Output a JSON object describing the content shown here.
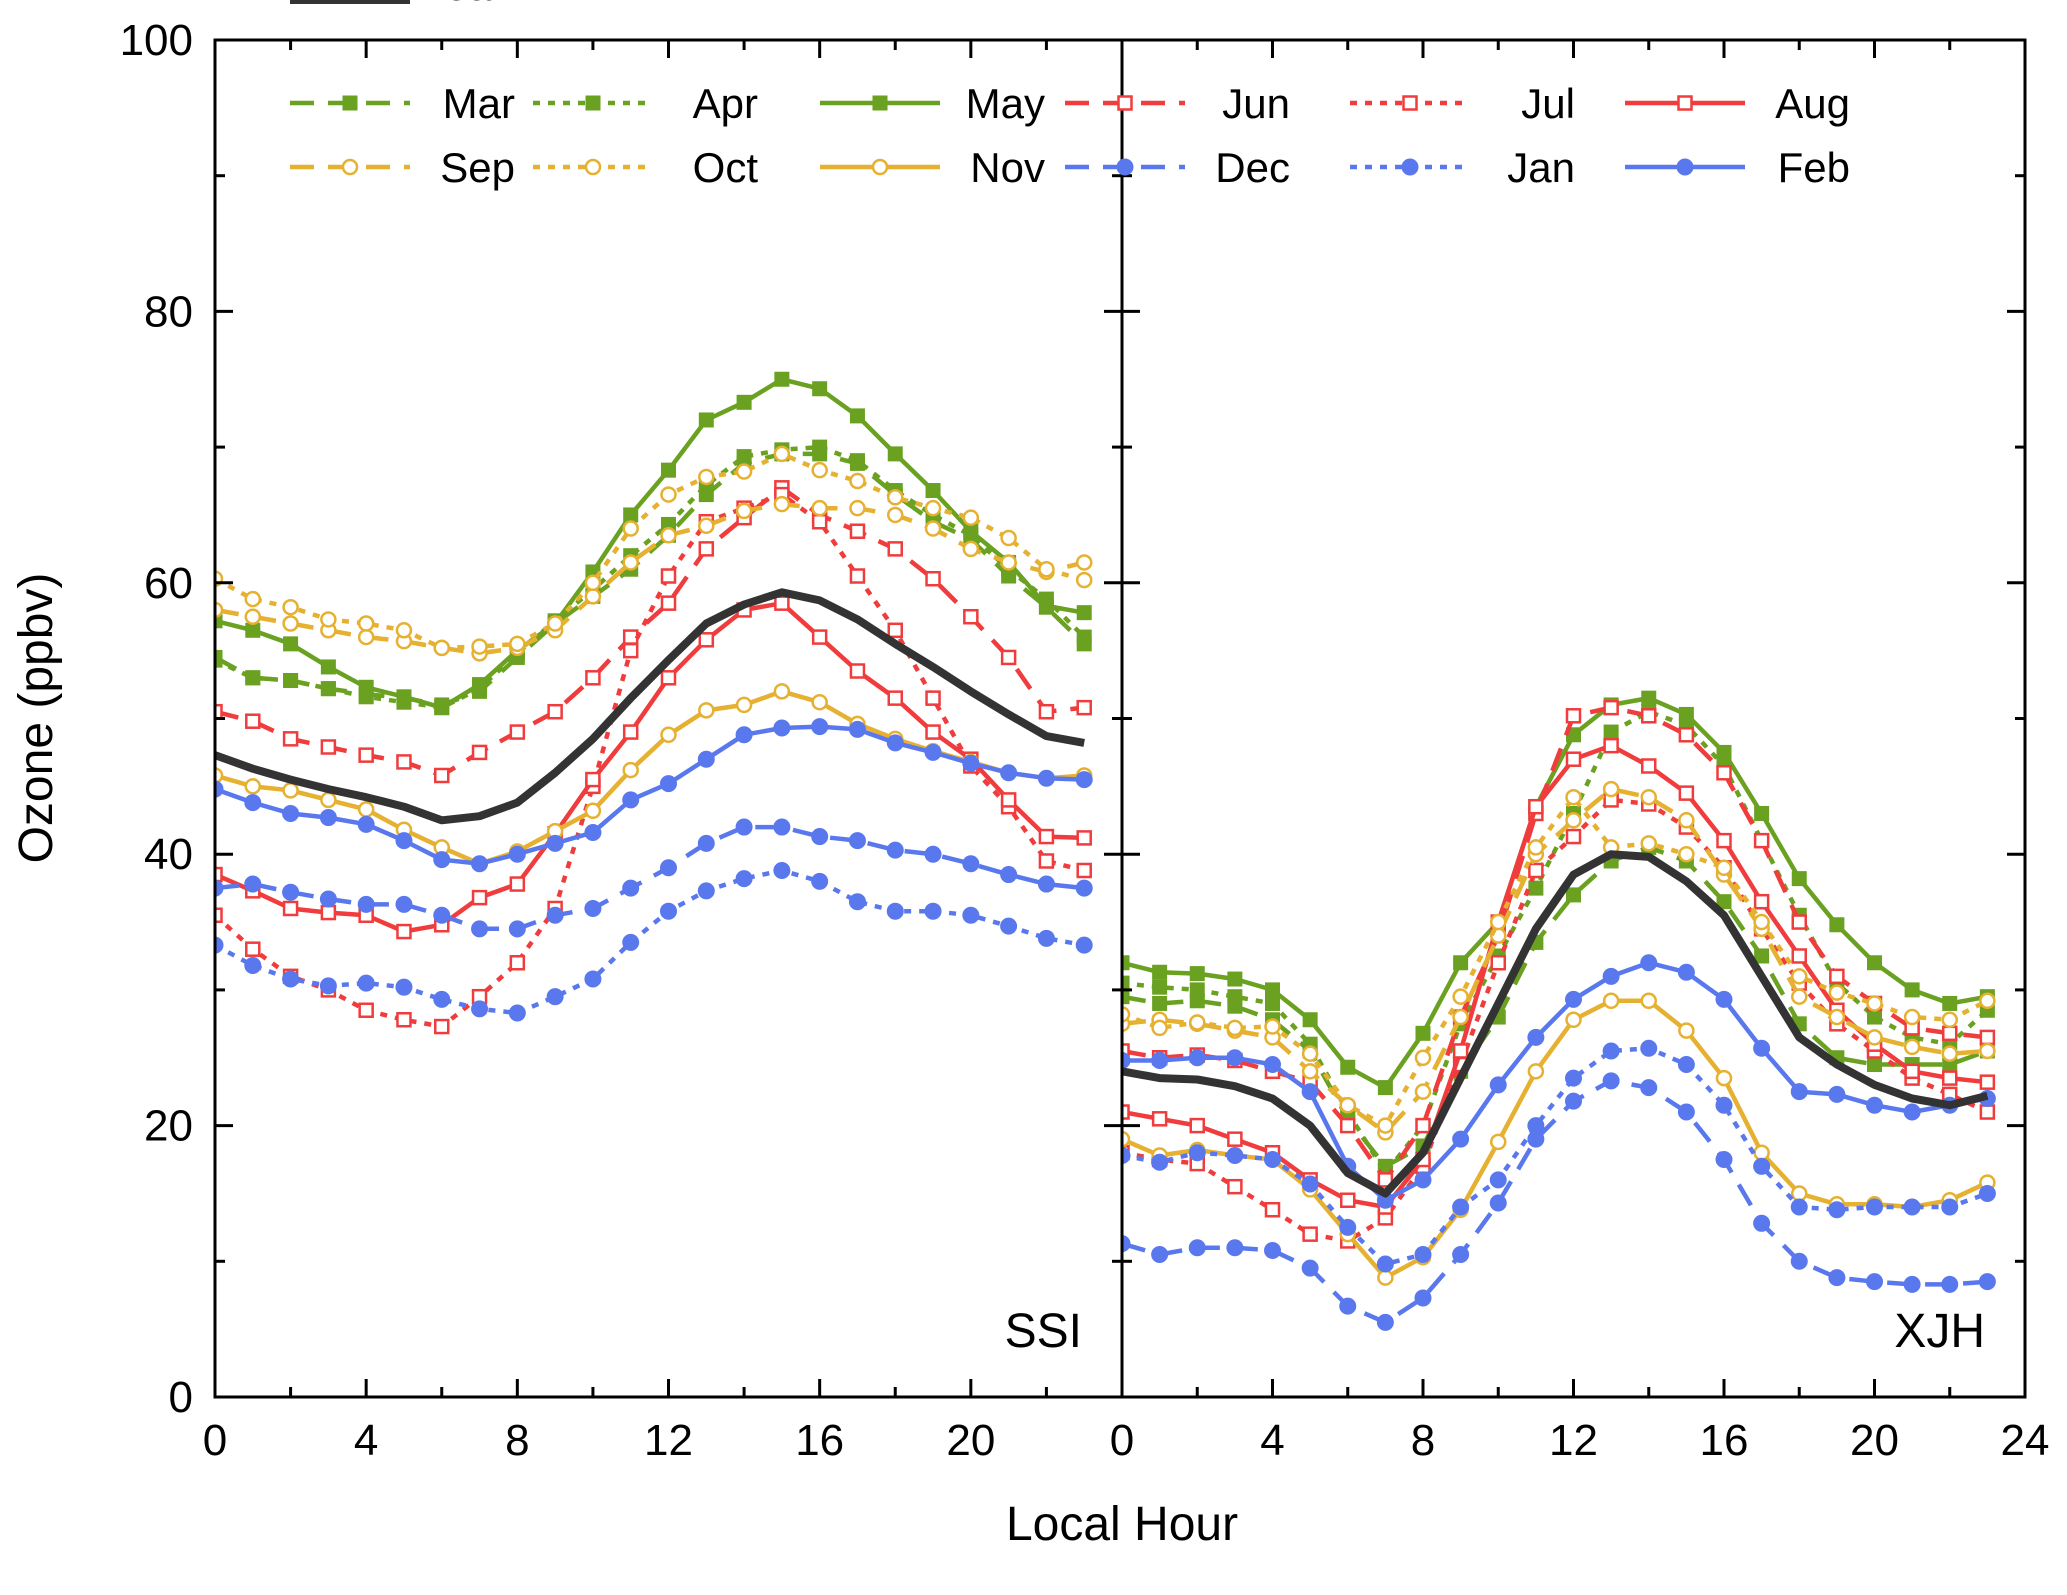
{
  "chart_data": [
    {
      "type": "line",
      "panel_label": "SSI",
      "xlabel": "Local Hour",
      "ylabel": "Ozone (ppbv)",
      "xlim": [
        0,
        24
      ],
      "ylim": [
        0,
        100
      ],
      "x_ticks": [
        0,
        4,
        8,
        12,
        16,
        20
      ],
      "y_ticks": [
        0,
        20,
        40,
        60,
        80,
        100
      ],
      "x": [
        0,
        1,
        2,
        3,
        4,
        5,
        6,
        7,
        8,
        9,
        10,
        11,
        12,
        13,
        14,
        15,
        16,
        17,
        18,
        19,
        20,
        21,
        22,
        23
      ],
      "series": [
        {
          "name": "Mar",
          "values": [
            54.5,
            53.0,
            52.8,
            52.2,
            51.8,
            51.5,
            51.0,
            52.0,
            54.5,
            57.0,
            59.0,
            61.0,
            63.5,
            66.5,
            68.8,
            69.5,
            69.5,
            68.8,
            66.5,
            64.5,
            63.2,
            60.5,
            58.2,
            55.5
          ]
        },
        {
          "name": "Apr",
          "values": [
            54.3,
            53.0,
            52.8,
            52.2,
            51.6,
            51.2,
            50.8,
            52.2,
            54.8,
            57.2,
            59.5,
            62.0,
            64.3,
            67.2,
            69.3,
            69.8,
            70.0,
            69.0,
            66.8,
            65.0,
            63.5,
            61.0,
            58.8,
            56.0
          ]
        },
        {
          "name": "May",
          "values": [
            57.2,
            56.5,
            55.5,
            53.8,
            52.3,
            51.6,
            50.8,
            52.5,
            55.0,
            57.0,
            60.8,
            65.0,
            68.3,
            72.0,
            73.3,
            75.0,
            74.3,
            72.3,
            69.5,
            66.8,
            63.8,
            61.5,
            58.3,
            57.8
          ]
        },
        {
          "name": "Jun",
          "values": [
            50.5,
            49.8,
            48.5,
            47.9,
            47.3,
            46.8,
            45.8,
            47.5,
            49.0,
            50.5,
            53.0,
            56.0,
            58.5,
            62.5,
            64.8,
            67.0,
            65.0,
            63.8,
            62.5,
            60.3,
            57.5,
            54.5,
            50.5,
            50.8
          ]
        },
        {
          "name": "Jul",
          "values": [
            35.5,
            33.0,
            31.0,
            30.0,
            28.5,
            27.8,
            27.3,
            29.5,
            32.0,
            36.0,
            45.0,
            55.0,
            60.5,
            64.5,
            65.5,
            66.5,
            64.5,
            60.5,
            56.5,
            51.5,
            46.5,
            43.5,
            39.5,
            38.8
          ]
        },
        {
          "name": "Aug",
          "values": [
            38.5,
            37.3,
            36.0,
            35.7,
            35.5,
            34.3,
            34.8,
            36.8,
            37.8,
            41.5,
            45.5,
            49.0,
            53.0,
            55.8,
            58.0,
            58.5,
            56.0,
            53.5,
            51.5,
            49.0,
            47.0,
            44.0,
            41.3,
            41.2
          ]
        },
        {
          "name": "Sep",
          "values": [
            58.0,
            57.5,
            57.0,
            56.5,
            56.0,
            55.7,
            55.2,
            54.8,
            55.2,
            56.5,
            59.0,
            61.5,
            63.5,
            64.2,
            65.3,
            65.8,
            65.5,
            65.5,
            65.0,
            64.0,
            62.5,
            61.5,
            60.8,
            61.5
          ]
        },
        {
          "name": "Oct",
          "values": [
            60.3,
            58.8,
            58.2,
            57.3,
            57.0,
            56.5,
            55.2,
            55.3,
            55.5,
            57.0,
            60.0,
            64.0,
            66.5,
            67.8,
            68.2,
            69.5,
            68.3,
            67.5,
            66.3,
            65.5,
            64.8,
            63.3,
            61.0,
            60.2
          ]
        },
        {
          "name": "Nov",
          "values": [
            45.8,
            45.0,
            44.7,
            44.0,
            43.3,
            41.8,
            40.5,
            39.3,
            40.2,
            41.7,
            43.2,
            46.2,
            48.8,
            50.6,
            51.0,
            52.0,
            51.2,
            49.6,
            48.5,
            47.6,
            46.8,
            46.0,
            45.6,
            45.8
          ]
        },
        {
          "name": "Dec",
          "values": [
            37.5,
            37.8,
            37.2,
            36.7,
            36.3,
            36.3,
            35.5,
            34.5,
            34.5,
            35.5,
            36.0,
            37.5,
            39.0,
            40.8,
            42.0,
            42.0,
            41.3,
            41.0,
            40.3,
            40.0,
            39.3,
            38.5,
            37.8,
            37.5
          ]
        },
        {
          "name": "Jan",
          "values": [
            33.3,
            31.8,
            30.8,
            30.3,
            30.5,
            30.2,
            29.3,
            28.6,
            28.3,
            29.5,
            30.8,
            33.5,
            35.8,
            37.3,
            38.2,
            38.8,
            38.0,
            36.5,
            35.8,
            35.8,
            35.5,
            34.7,
            33.8,
            33.3
          ]
        },
        {
          "name": "Feb",
          "values": [
            44.8,
            43.8,
            43.0,
            42.7,
            42.2,
            41.0,
            39.6,
            39.3,
            40.0,
            40.8,
            41.6,
            44.0,
            45.2,
            47.0,
            48.8,
            49.3,
            49.4,
            49.2,
            48.2,
            47.5,
            46.7,
            46.0,
            45.6,
            45.5
          ]
        },
        {
          "name": "Mean",
          "values": [
            47.3,
            46.3,
            45.5,
            44.8,
            44.2,
            43.5,
            42.5,
            42.8,
            43.8,
            46.0,
            48.5,
            51.5,
            54.3,
            57.0,
            58.4,
            59.3,
            58.7,
            57.3,
            55.5,
            53.8,
            52.0,
            50.3,
            48.7,
            48.2
          ]
        }
      ]
    },
    {
      "type": "line",
      "panel_label": "XJH",
      "xlabel": "Local Hour",
      "ylabel": "Ozone (ppbv)",
      "xlim": [
        0,
        24
      ],
      "ylim": [
        0,
        100
      ],
      "x_ticks": [
        0,
        4,
        8,
        12,
        16,
        20,
        24
      ],
      "y_ticks": [
        0,
        20,
        40,
        60,
        80,
        100
      ],
      "x": [
        0,
        1,
        2,
        3,
        4,
        5,
        6,
        7,
        8,
        9,
        10,
        11,
        12,
        13,
        14,
        15,
        16,
        17,
        18,
        19,
        20,
        21,
        22,
        23
      ],
      "series": [
        {
          "name": "Mar",
          "values": [
            29.5,
            29.0,
            29.2,
            28.8,
            27.8,
            25.5,
            20.5,
            17.0,
            18.5,
            24.0,
            28.0,
            33.5,
            37.0,
            39.5,
            40.5,
            39.5,
            36.5,
            32.5,
            27.5,
            25.0,
            24.5,
            24.5,
            24.5,
            25.5
          ]
        },
        {
          "name": "Apr",
          "values": [
            30.5,
            30.2,
            30.0,
            29.5,
            29.0,
            26.0,
            21.0,
            16.5,
            20.0,
            27.5,
            32.5,
            37.5,
            43.0,
            49.0,
            50.5,
            49.5,
            46.5,
            41.0,
            35.5,
            30.5,
            28.0,
            26.5,
            26.0,
            28.5
          ]
        },
        {
          "name": "May",
          "values": [
            32.0,
            31.3,
            31.2,
            30.8,
            30.0,
            27.8,
            24.3,
            22.8,
            26.8,
            32.0,
            35.0,
            43.5,
            48.8,
            51.0,
            51.5,
            50.3,
            47.5,
            43.0,
            38.2,
            34.8,
            32.0,
            30.0,
            29.0,
            29.5
          ]
        },
        {
          "name": "Jun",
          "values": [
            25.5,
            25.0,
            25.2,
            24.8,
            24.0,
            23.2,
            20.0,
            16.0,
            20.0,
            28.0,
            34.0,
            43.0,
            50.2,
            50.8,
            50.2,
            48.8,
            46.0,
            41.0,
            35.0,
            31.0,
            29.0,
            27.2,
            26.8,
            26.5
          ]
        },
        {
          "name": "Jul",
          "values": [
            18.0,
            17.5,
            17.2,
            15.5,
            13.8,
            12.0,
            11.5,
            13.2,
            17.0,
            24.5,
            32.0,
            38.8,
            41.3,
            44.0,
            43.7,
            42.0,
            39.0,
            34.5,
            30.5,
            27.5,
            25.5,
            23.5,
            22.3,
            21.0
          ]
        },
        {
          "name": "Aug",
          "values": [
            21.0,
            20.5,
            20.0,
            19.0,
            18.0,
            16.0,
            14.5,
            14.0,
            17.5,
            25.5,
            35.0,
            43.5,
            47.0,
            48.0,
            46.5,
            44.5,
            41.0,
            36.5,
            32.5,
            28.5,
            26.0,
            24.0,
            23.5,
            23.2
          ]
        },
        {
          "name": "Sep",
          "values": [
            27.5,
            27.8,
            27.5,
            27.0,
            26.5,
            24.0,
            21.5,
            19.5,
            22.5,
            28.0,
            34.0,
            40.0,
            42.5,
            44.8,
            44.2,
            42.5,
            38.5,
            34.5,
            29.5,
            28.0,
            26.5,
            25.8,
            25.3,
            25.5
          ]
        },
        {
          "name": "Oct",
          "values": [
            28.2,
            27.2,
            27.6,
            27.2,
            27.3,
            25.3,
            21.5,
            20.0,
            25.0,
            29.5,
            35.0,
            40.5,
            44.2,
            40.5,
            40.8,
            40.0,
            39.0,
            35.0,
            31.0,
            29.8,
            29.0,
            28.0,
            27.8,
            29.2
          ]
        },
        {
          "name": "Nov",
          "values": [
            19.0,
            17.8,
            18.2,
            17.8,
            17.5,
            15.3,
            12.0,
            8.8,
            10.3,
            13.8,
            18.8,
            24.0,
            27.8,
            29.2,
            29.2,
            27.0,
            23.5,
            18.0,
            15.0,
            14.2,
            14.2,
            14.0,
            14.5,
            15.8
          ]
        },
        {
          "name": "Dec",
          "values": [
            11.3,
            10.5,
            11.0,
            11.0,
            10.8,
            9.5,
            6.7,
            5.5,
            7.3,
            10.5,
            14.3,
            19.0,
            21.8,
            23.3,
            22.8,
            21.0,
            17.5,
            12.8,
            10.0,
            8.8,
            8.5,
            8.3,
            8.3,
            8.5
          ]
        },
        {
          "name": "Jan",
          "values": [
            17.8,
            17.3,
            18.0,
            17.8,
            17.5,
            15.7,
            12.5,
            9.8,
            10.5,
            14.0,
            16.0,
            20.0,
            23.5,
            25.5,
            25.7,
            24.5,
            21.5,
            17.0,
            14.0,
            13.8,
            14.0,
            14.0,
            14.0,
            15.0
          ]
        },
        {
          "name": "Feb",
          "values": [
            24.8,
            24.8,
            25.0,
            25.0,
            24.5,
            22.5,
            17.0,
            14.5,
            16.0,
            19.0,
            23.0,
            26.5,
            29.3,
            31.0,
            32.0,
            31.3,
            29.3,
            25.7,
            22.5,
            22.3,
            21.5,
            21.0,
            21.5,
            22.0
          ]
        },
        {
          "name": "Mean",
          "values": [
            24.0,
            23.5,
            23.4,
            22.9,
            22.0,
            20.0,
            16.5,
            15.0,
            18.0,
            23.5,
            29.0,
            34.5,
            38.5,
            40.0,
            39.8,
            38.0,
            35.5,
            31.0,
            26.5,
            24.5,
            23.0,
            22.0,
            21.5,
            22.2
          ]
        }
      ]
    }
  ],
  "styles": [
    {
      "name": "Mar",
      "color": "#6aa121",
      "dash": "dash",
      "marker": "square-filled"
    },
    {
      "name": "Apr",
      "color": "#6aa121",
      "dash": "dot",
      "marker": "square-filled"
    },
    {
      "name": "May",
      "color": "#6aa121",
      "dash": "solid",
      "marker": "square-filled"
    },
    {
      "name": "Jun",
      "color": "#f03c3c",
      "dash": "dash",
      "marker": "square-open"
    },
    {
      "name": "Jul",
      "color": "#f03c3c",
      "dash": "dot",
      "marker": "square-open"
    },
    {
      "name": "Aug",
      "color": "#f03c3c",
      "dash": "solid",
      "marker": "square-open"
    },
    {
      "name": "Sep",
      "color": "#e6b030",
      "dash": "dash",
      "marker": "circle-open"
    },
    {
      "name": "Oct",
      "color": "#e6b030",
      "dash": "dot",
      "marker": "circle-open"
    },
    {
      "name": "Nov",
      "color": "#e6b030",
      "dash": "solid",
      "marker": "circle-open"
    },
    {
      "name": "Dec",
      "color": "#5a78ee",
      "dash": "dash",
      "marker": "circle-filled"
    },
    {
      "name": "Jan",
      "color": "#5a78ee",
      "dash": "dot",
      "marker": "circle-filled"
    },
    {
      "name": "Feb",
      "color": "#5a78ee",
      "dash": "solid",
      "marker": "circle-filled"
    },
    {
      "name": "Mean",
      "color": "#333333",
      "dash": "solid",
      "marker": "none"
    }
  ]
}
